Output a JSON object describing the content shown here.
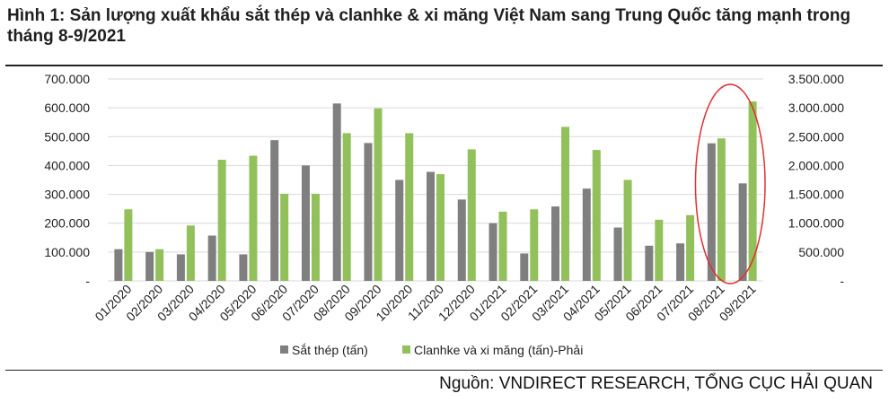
{
  "title": "Hình 1:  Sản lượng xuất khẩu sắt thép và clanhke & xi măng Việt Nam sang Trung Quốc tăng mạnh trong tháng 8-9/2021",
  "source": "Nguồn: VNDIRECT RESEARCH, TỔNG CỤC HẢI QUAN",
  "colors": {
    "series1": "#7f7f7f",
    "series2": "#92c05a",
    "highlight": "#e03030"
  },
  "chart_data": {
    "type": "bar",
    "categories": [
      "01/2020",
      "02/2020",
      "03/2020",
      "04/2020",
      "05/2020",
      "06/2020",
      "07/2020",
      "08/2020",
      "09/2020",
      "10/2020",
      "11/2020",
      "12/2020",
      "01/2021",
      "02/2021",
      "03/2021",
      "04/2021",
      "05/2021",
      "06/2021",
      "07/2021",
      "08/2021",
      "09/2021"
    ],
    "series": [
      {
        "name": "Sắt thép (tấn)",
        "axis": "left",
        "values": [
          110000,
          100000,
          92000,
          157000,
          92000,
          488000,
          400000,
          615000,
          478000,
          350000,
          378000,
          282000,
          200000,
          95000,
          258000,
          320000,
          185000,
          122000,
          130000,
          477000,
          338000
        ]
      },
      {
        "name": "Clanhke và xi măng (tấn)-Phải",
        "axis": "right",
        "values": [
          1240000,
          550000,
          960000,
          2100000,
          2170000,
          1510000,
          1510000,
          2560000,
          2990000,
          2560000,
          1850000,
          2280000,
          1200000,
          1240000,
          2670000,
          2270000,
          1750000,
          1060000,
          1140000,
          2470000,
          3110000
        ]
      }
    ],
    "ylim_left": [
      0,
      700000
    ],
    "ylim_right": [
      0,
      3500000
    ],
    "yticks_left": [
      "-",
      "100.000",
      "200.000",
      "300.000",
      "400.000",
      "500.000",
      "600.000",
      "700.000"
    ],
    "yticks_right": [
      "-",
      "500.000",
      "1.000.000",
      "1.500.000",
      "2.000.000",
      "2.500.000",
      "3.000.000",
      "3.500.000"
    ],
    "grid": true,
    "legend": "bottom",
    "highlight_categories": [
      "08/2021",
      "09/2021"
    ]
  }
}
